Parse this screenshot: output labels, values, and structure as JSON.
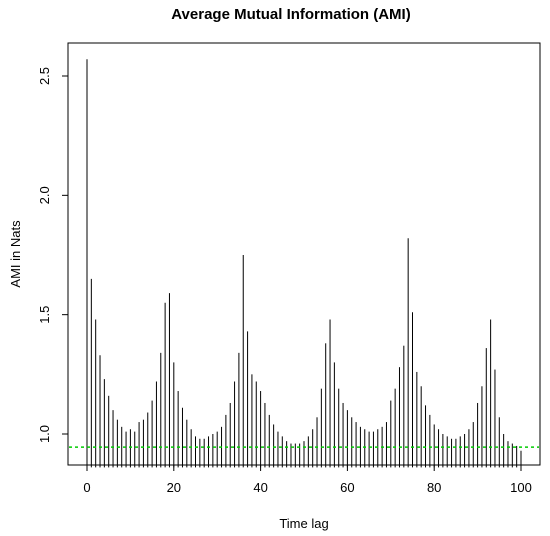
{
  "chart_data": {
    "type": "bar",
    "title": "Average Mutual Information (AMI)",
    "xlabel": "Time lag",
    "ylabel": "AMI in Nats",
    "xlim": [
      0,
      100
    ],
    "ylim": [
      0.86,
      2.6
    ],
    "x_ticks": [
      0,
      20,
      40,
      60,
      80,
      100
    ],
    "y_ticks": [
      1.0,
      1.5,
      2.0,
      2.5
    ],
    "threshold": 0.945,
    "threshold_color": "#00cc00",
    "bar_color": "#000000",
    "grid": false,
    "x": [
      0,
      1,
      2,
      3,
      4,
      5,
      6,
      7,
      8,
      9,
      10,
      11,
      12,
      13,
      14,
      15,
      16,
      17,
      18,
      19,
      20,
      21,
      22,
      23,
      24,
      25,
      26,
      27,
      28,
      29,
      30,
      31,
      32,
      33,
      34,
      35,
      36,
      37,
      38,
      39,
      40,
      41,
      42,
      43,
      44,
      45,
      46,
      47,
      48,
      49,
      50,
      51,
      52,
      53,
      54,
      55,
      56,
      57,
      58,
      59,
      60,
      61,
      62,
      63,
      64,
      65,
      66,
      67,
      68,
      69,
      70,
      71,
      72,
      73,
      74,
      75,
      76,
      77,
      78,
      79,
      80,
      81,
      82,
      83,
      84,
      85,
      86,
      87,
      88,
      89,
      90,
      91,
      92,
      93,
      94,
      95,
      96,
      97,
      98,
      99,
      100
    ],
    "values": [
      2.57,
      1.65,
      1.48,
      1.33,
      1.23,
      1.16,
      1.1,
      1.06,
      1.03,
      1.01,
      1.02,
      1.01,
      1.05,
      1.06,
      1.09,
      1.14,
      1.22,
      1.34,
      1.55,
      1.59,
      1.3,
      1.18,
      1.11,
      1.06,
      1.02,
      0.99,
      0.98,
      0.98,
      0.99,
      1.0,
      1.01,
      1.03,
      1.08,
      1.13,
      1.22,
      1.34,
      1.75,
      1.43,
      1.25,
      1.22,
      1.18,
      1.13,
      1.08,
      1.04,
      1.01,
      0.99,
      0.97,
      0.96,
      0.96,
      0.96,
      0.97,
      0.99,
      1.02,
      1.07,
      1.19,
      1.38,
      1.48,
      1.3,
      1.19,
      1.13,
      1.1,
      1.07,
      1.05,
      1.03,
      1.02,
      1.01,
      1.01,
      1.02,
      1.03,
      1.05,
      1.14,
      1.19,
      1.28,
      1.37,
      1.82,
      1.51,
      1.26,
      1.2,
      1.12,
      1.08,
      1.04,
      1.02,
      1.0,
      0.99,
      0.98,
      0.98,
      0.99,
      1.0,
      1.02,
      1.05,
      1.13,
      1.2,
      1.36,
      1.48,
      1.27,
      1.07,
      1.0,
      0.97,
      0.96,
      0.95,
      0.93
    ]
  }
}
